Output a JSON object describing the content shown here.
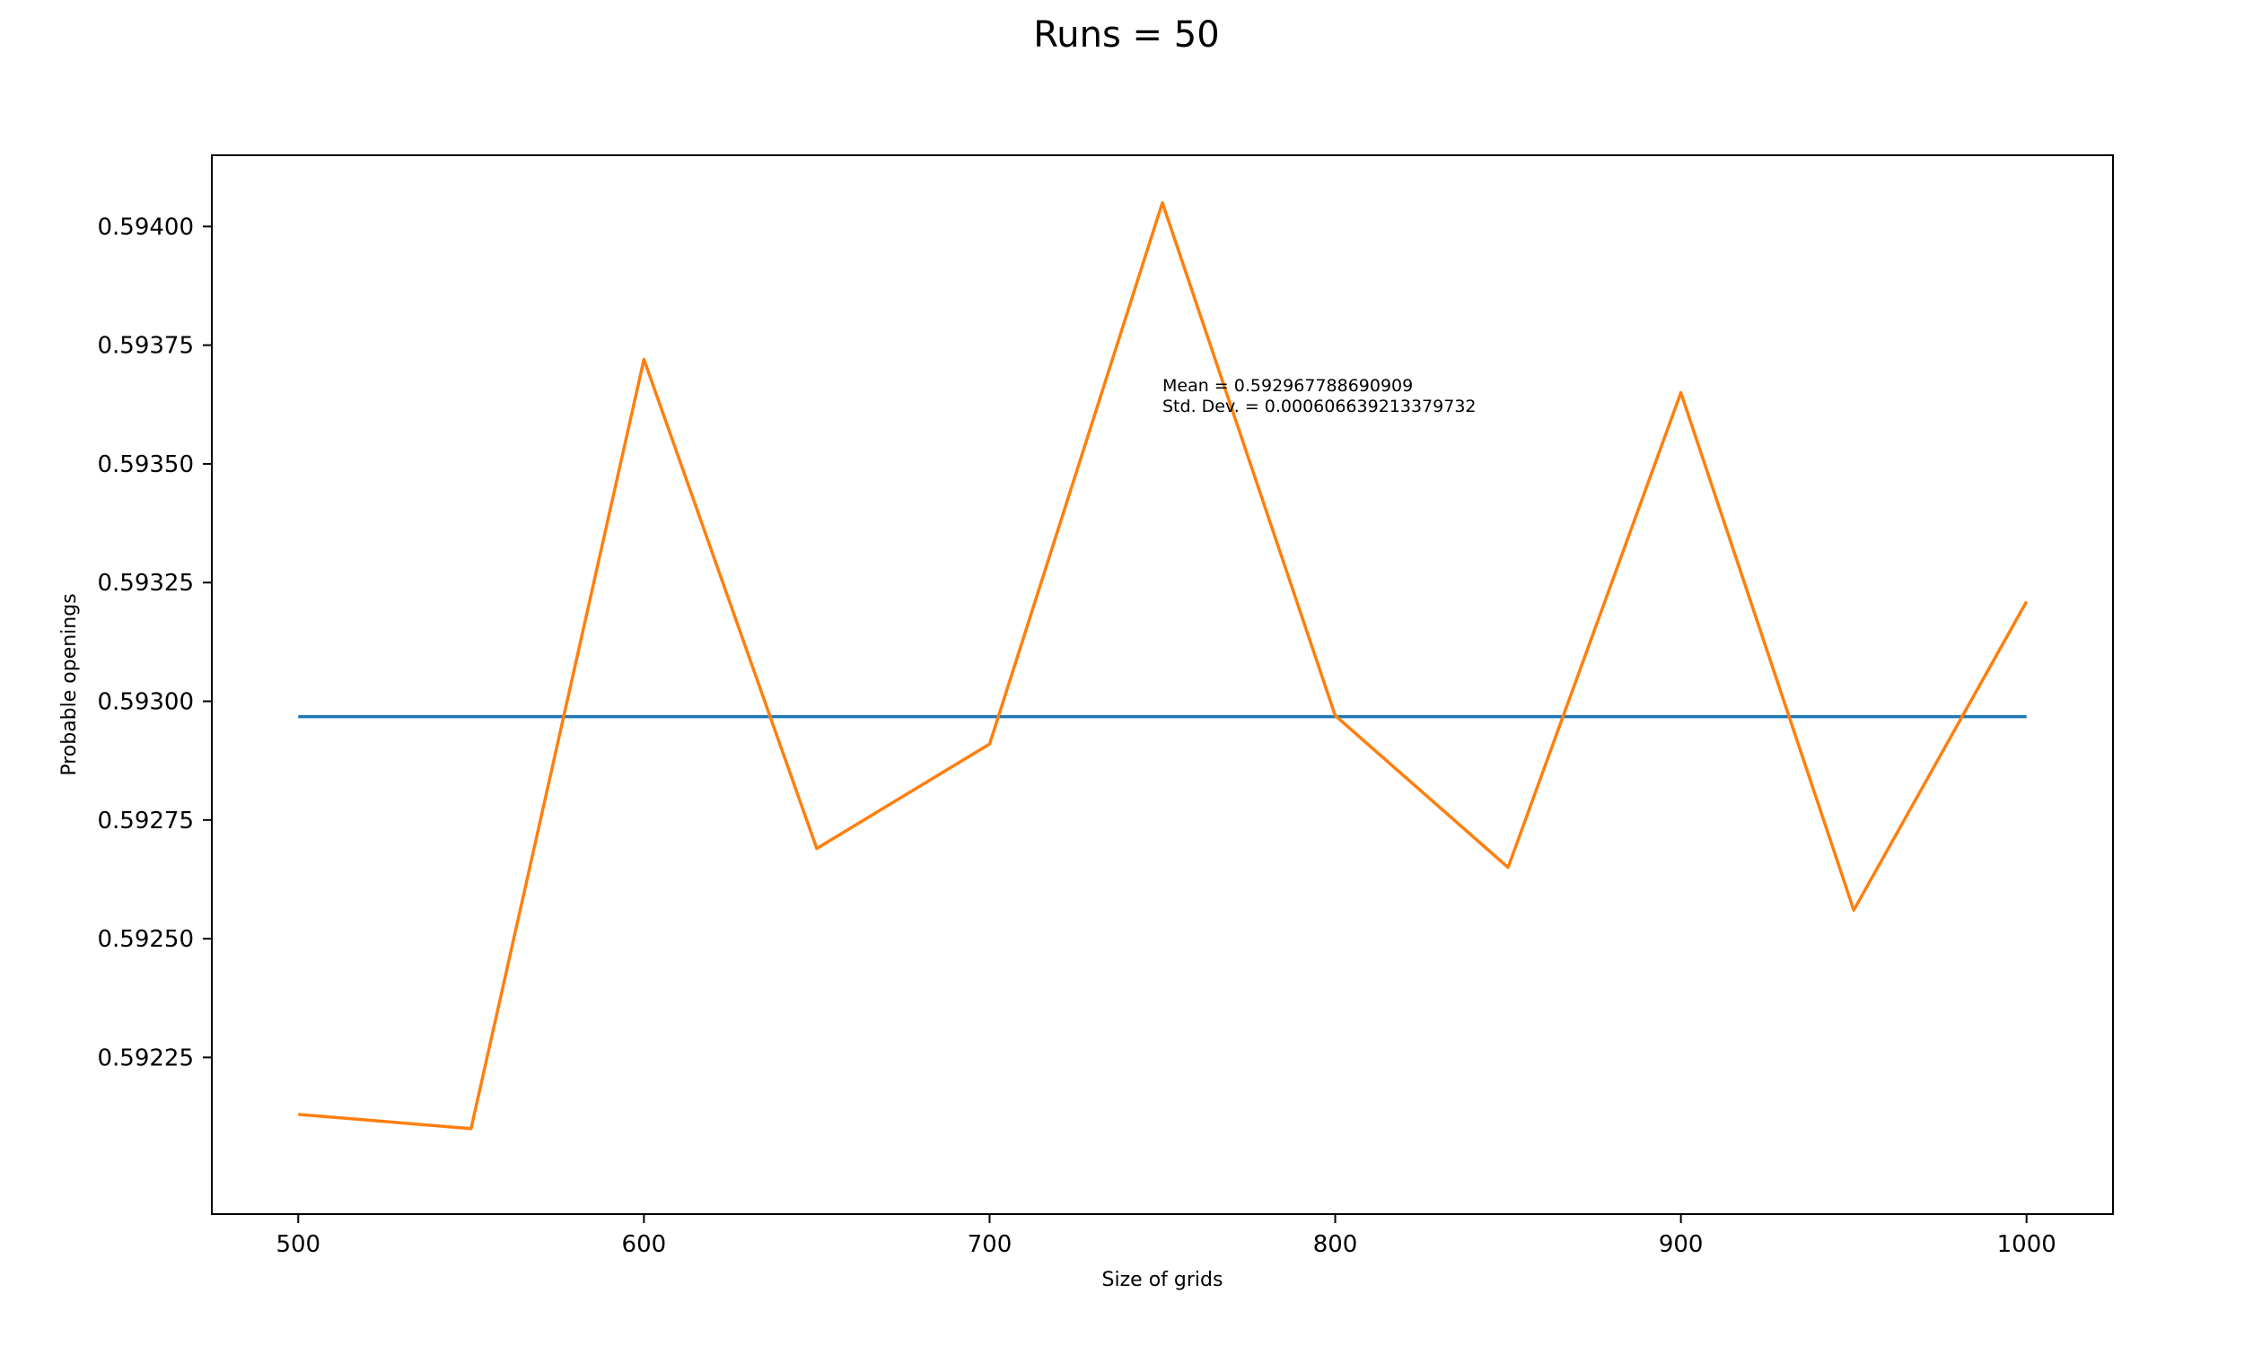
{
  "chart_data": {
    "type": "line",
    "title": "Runs = 50",
    "xlabel": "Size of grids",
    "ylabel": "Probable openings",
    "xlim": [
      475,
      1025
    ],
    "ylim": [
      0.59192,
      0.59415
    ],
    "xticks": [
      500,
      600,
      700,
      800,
      900,
      1000
    ],
    "xtick_labels": [
      "500",
      "600",
      "700",
      "800",
      "900",
      "1000"
    ],
    "yticks": [
      0.59225,
      0.5925,
      0.59275,
      0.593,
      0.59325,
      0.5935,
      0.59375,
      0.594
    ],
    "ytick_labels": [
      "0.59225",
      "0.59250",
      "0.59275",
      "0.59300",
      "0.59325",
      "0.59350",
      "0.59375",
      "0.59400"
    ],
    "grid": false,
    "series": [
      {
        "color": "#1f77b4",
        "x": [
          500,
          1000
        ],
        "y": [
          0.592967788690909,
          0.592967788690909
        ]
      },
      {
        "color": "#ff7f0e",
        "x": [
          500,
          550,
          600,
          650,
          700,
          750,
          800,
          850,
          900,
          950,
          1000
        ],
        "y": [
          0.59213,
          0.5921,
          0.59372,
          0.59269,
          0.59291,
          0.59405,
          0.59297,
          0.59265,
          0.59365,
          0.59256,
          0.59321
        ]
      }
    ],
    "annotation": {
      "x": 750,
      "y": 0.59363,
      "lines": [
        "Mean = 0.592967788690909",
        "Std. Dev. = 0.000606639213379732"
      ]
    }
  }
}
